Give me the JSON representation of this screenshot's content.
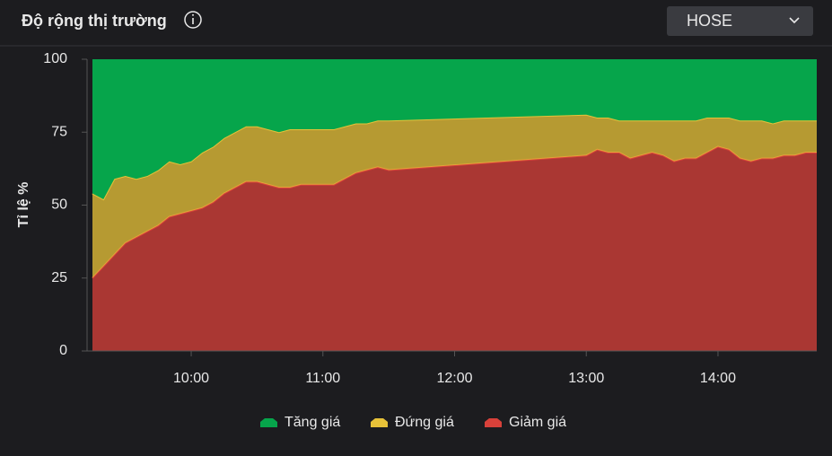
{
  "header": {
    "exchange": "HOSE"
  },
  "chart_data": {
    "type": "stacked-area",
    "title": "Độ rộng thị trường",
    "ylabel": "Tỉ lệ %",
    "x": [
      "09:15",
      "09:20",
      "09:25",
      "09:30",
      "09:35",
      "09:40",
      "09:45",
      "09:50",
      "09:55",
      "10:00",
      "10:05",
      "10:10",
      "10:15",
      "10:20",
      "10:25",
      "10:30",
      "10:35",
      "10:40",
      "10:45",
      "10:50",
      "10:55",
      "11:00",
      "11:05",
      "11:10",
      "11:15",
      "11:20",
      "11:25",
      "11:30",
      "13:00",
      "13:05",
      "13:10",
      "13:15",
      "13:20",
      "13:25",
      "13:30",
      "13:35",
      "13:40",
      "13:45",
      "13:50",
      "13:55",
      "14:00",
      "14:05",
      "14:10",
      "14:15",
      "14:20",
      "14:25",
      "14:30",
      "14:35",
      "14:40",
      "14:45"
    ],
    "series": [
      {
        "name": "Tăng giá",
        "color": "#06a54b",
        "values": [
          46,
          48,
          41,
          40,
          41,
          40,
          38,
          35,
          36,
          35,
          32,
          30,
          27,
          25,
          23,
          23,
          24,
          25,
          24,
          24,
          24,
          24,
          24,
          23,
          22,
          22,
          21,
          21,
          19,
          20,
          20,
          21,
          21,
          21,
          21,
          21,
          21,
          21,
          21,
          20,
          20,
          20,
          21,
          21,
          21,
          22,
          21,
          21,
          21,
          21
        ]
      },
      {
        "name": "Đứng giá",
        "color": "#e7c239",
        "values": [
          29,
          23,
          26,
          23,
          20,
          19,
          19,
          19,
          17,
          17,
          19,
          19,
          19,
          19,
          19,
          19,
          19,
          19,
          20,
          19,
          19,
          19,
          19,
          18,
          17,
          16,
          16,
          17,
          14,
          11,
          12,
          11,
          13,
          12,
          11,
          12,
          14,
          13,
          13,
          12,
          10,
          11,
          13,
          14,
          13,
          12,
          12,
          12,
          11,
          11
        ]
      },
      {
        "name": "Giảm giá",
        "color": "#d8413a",
        "values": [
          25,
          29,
          33,
          37,
          39,
          41,
          43,
          46,
          47,
          48,
          49,
          51,
          54,
          56,
          58,
          58,
          57,
          56,
          56,
          57,
          57,
          57,
          57,
          59,
          61,
          62,
          63,
          62,
          67,
          69,
          68,
          68,
          66,
          67,
          68,
          67,
          65,
          66,
          66,
          68,
          70,
          69,
          66,
          65,
          66,
          66,
          67,
          67,
          68,
          68
        ]
      }
    ],
    "xlim": [
      "09:15",
      "14:45"
    ],
    "xticks": [
      "10:00",
      "11:00",
      "12:00",
      "13:00",
      "14:00"
    ],
    "ylim": [
      0,
      100
    ],
    "yticks": [
      0,
      25,
      50,
      75,
      100
    ],
    "grid": false
  }
}
